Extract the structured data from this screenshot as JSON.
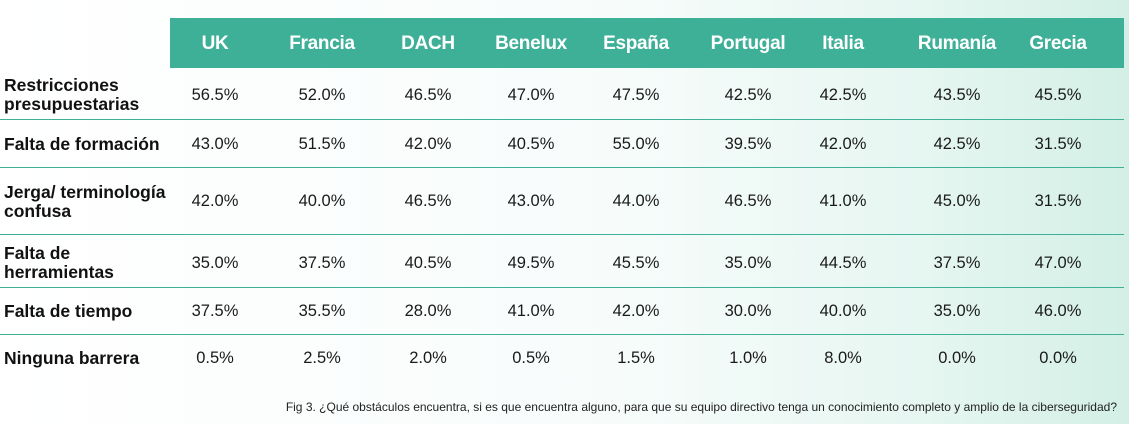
{
  "chart_data": {
    "type": "table",
    "columns": [
      "UK",
      "Francia",
      "DACH",
      "Benelux",
      "España",
      "Portugal",
      "Italia",
      "Rumanía",
      "Grecia"
    ],
    "rows": [
      {
        "label": "Restricciones presupuestarias",
        "values": [
          "56.5%",
          "52.0%",
          "46.5%",
          "47.0%",
          "47.5%",
          "42.5%",
          "42.5%",
          "43.5%",
          "45.5%"
        ]
      },
      {
        "label": "Falta de formación",
        "values": [
          "43.0%",
          "51.5%",
          "42.0%",
          "40.5%",
          "55.0%",
          "39.5%",
          "42.0%",
          "42.5%",
          "31.5%"
        ]
      },
      {
        "label": "Jerga/ terminología confusa",
        "values": [
          "42.0%",
          "40.0%",
          "46.5%",
          "43.0%",
          "44.0%",
          "46.5%",
          "41.0%",
          "45.0%",
          "31.5%"
        ]
      },
      {
        "label": "Falta de herramientas",
        "values": [
          "35.0%",
          "37.5%",
          "40.5%",
          "49.5%",
          "45.5%",
          "35.0%",
          "44.5%",
          "37.5%",
          "47.0%"
        ]
      },
      {
        "label": "Falta de tiempo",
        "values": [
          "37.5%",
          "35.5%",
          "28.0%",
          "41.0%",
          "42.0%",
          "30.0%",
          "40.0%",
          "35.0%",
          "46.0%"
        ]
      },
      {
        "label": "Ninguna barrera",
        "values": [
          "0.5%",
          "2.5%",
          "2.0%",
          "0.5%",
          "1.5%",
          "1.0%",
          "8.0%",
          "0.0%",
          "0.0%"
        ]
      }
    ],
    "caption": "Fig 3. ¿Qué obstáculos encuentra, si es que encuentra alguno, para que su equipo directivo tenga un conocimiento completo y amplio de la ciberseguridad?"
  },
  "colors": {
    "header_bg": "#3fb098",
    "header_text": "#ffffff",
    "rule": "#3fb098"
  }
}
